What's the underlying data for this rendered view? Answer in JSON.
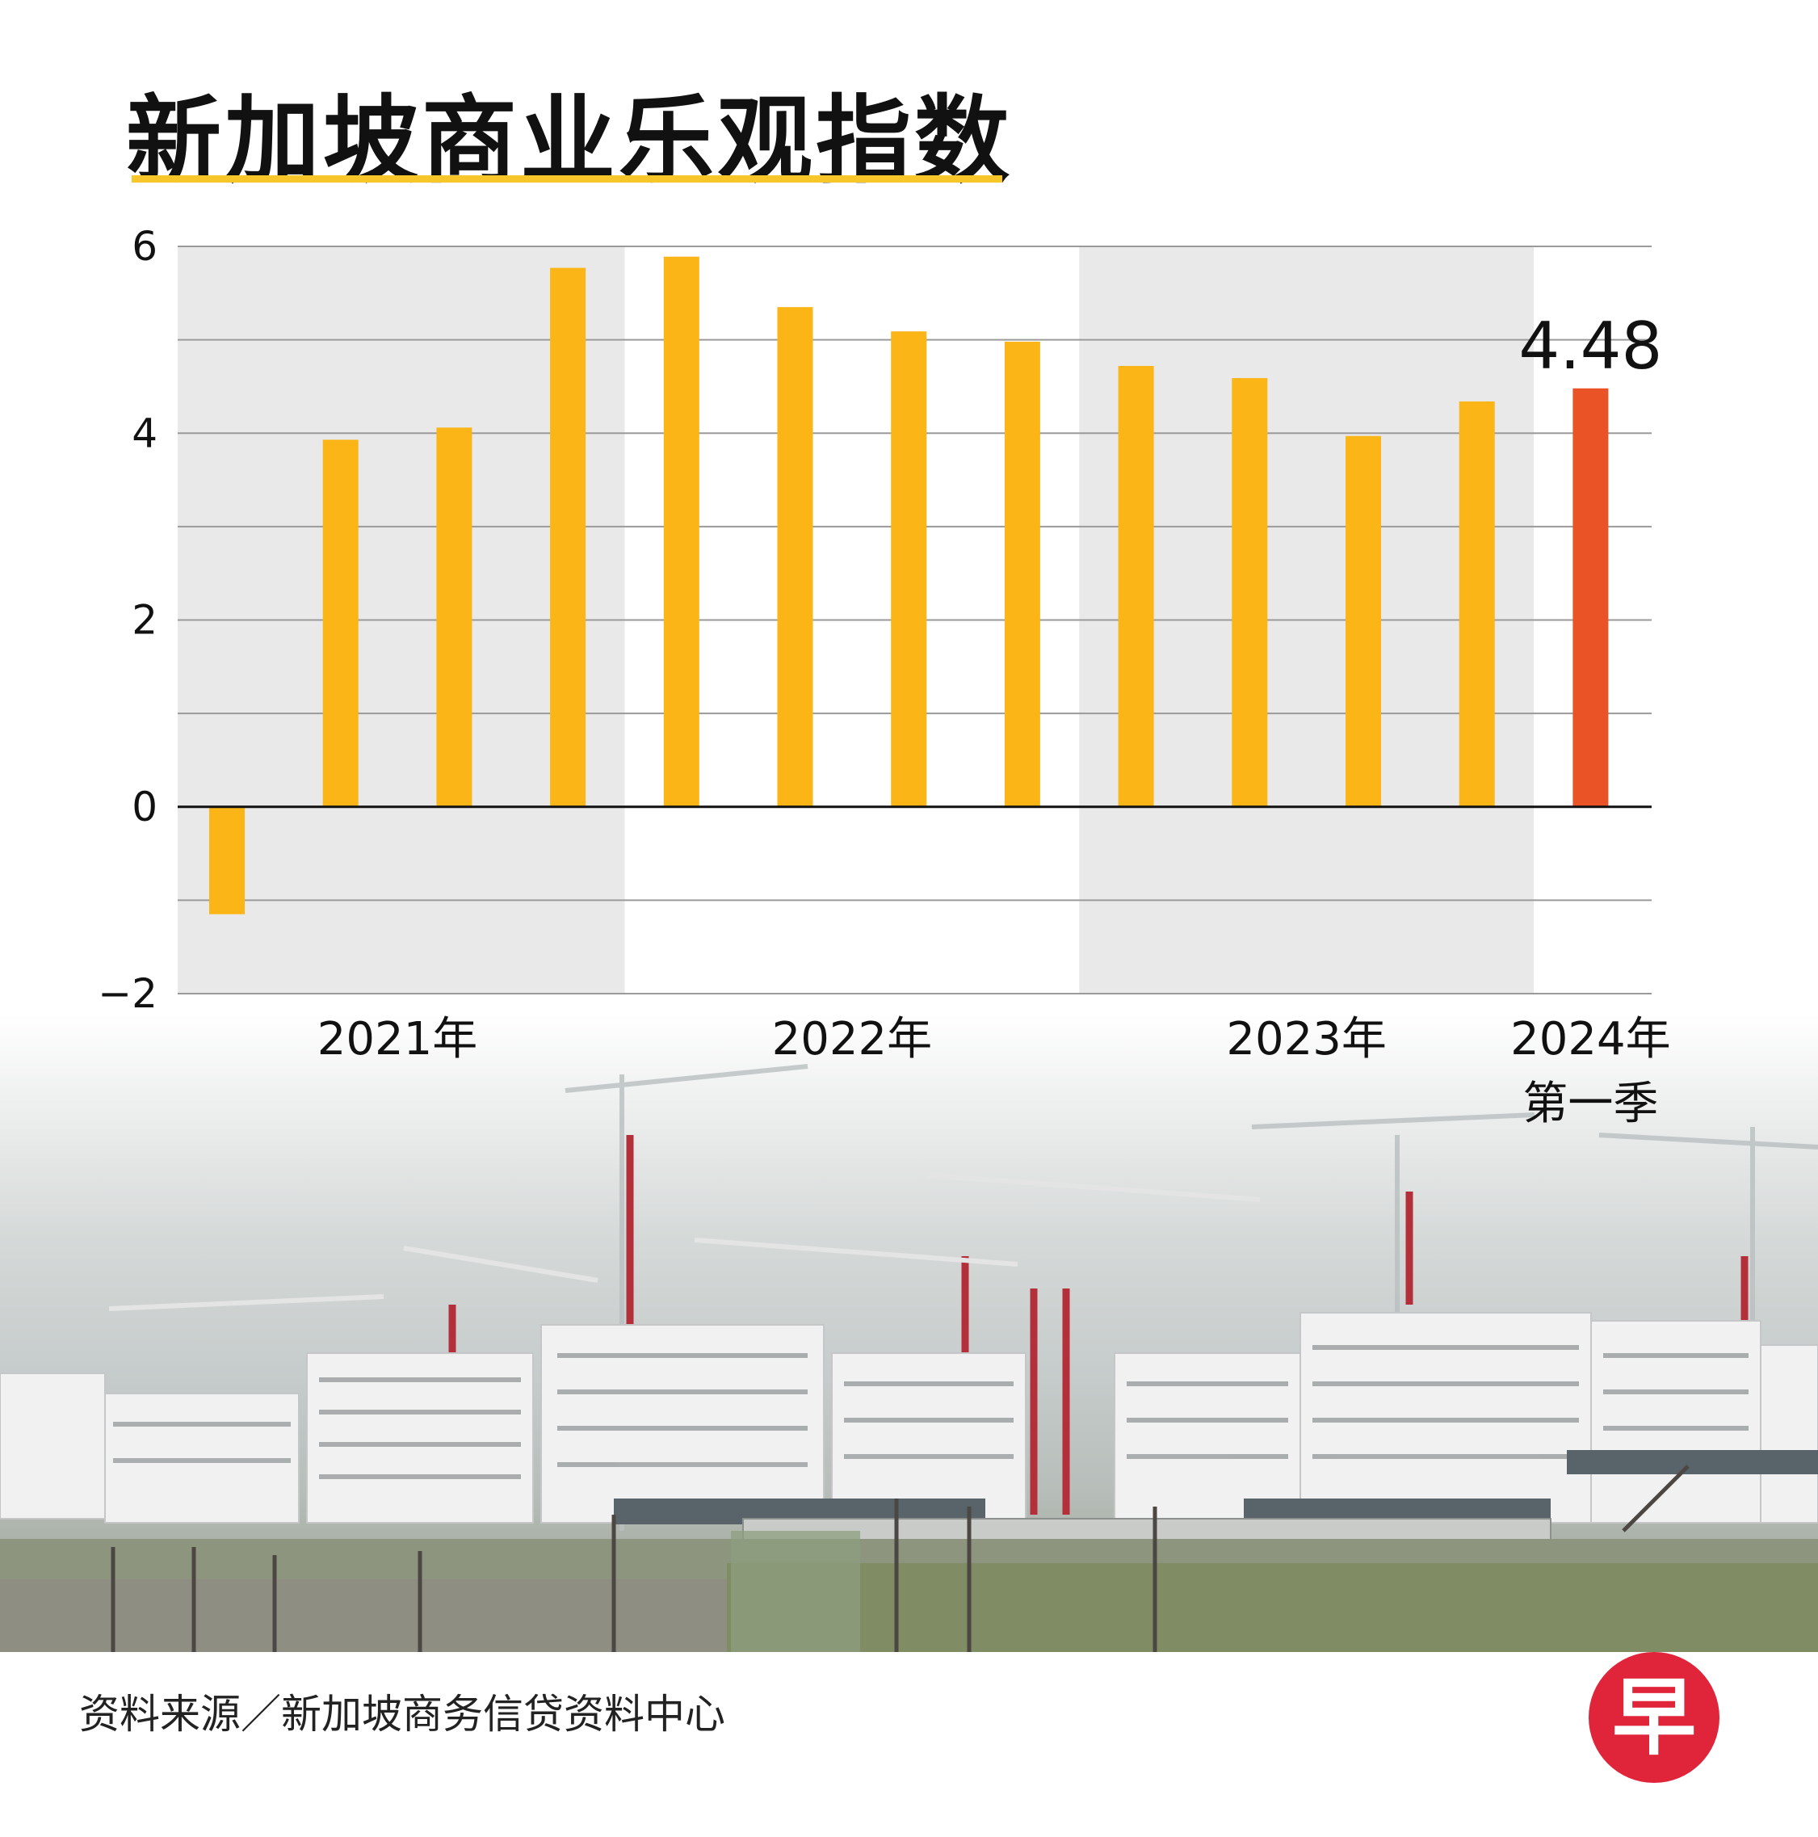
{
  "title": "新加坡商业乐观指数",
  "source": "资料来源／新加坡商务信贷资料中心",
  "logo_text": "早",
  "colors": {
    "bar": "#fbb517",
    "highlight_bar": "#ea5326",
    "band": "#e9e9e9",
    "grid": "#9a9a9a",
    "title_underline": "#f6c62b",
    "logo": "#e0243a"
  },
  "chart_data": {
    "type": "bar",
    "title": "新加坡商业乐观指数",
    "xlabel": "",
    "ylabel": "",
    "ylim": [
      -2,
      6
    ],
    "yticks": [
      6,
      4,
      2,
      0,
      -2
    ],
    "ytick_labels": [
      "6",
      "4",
      "2",
      "0",
      "−2"
    ],
    "grid": true,
    "categories": [
      "2021 Q1",
      "2021 Q2",
      "2021 Q3",
      "2021 Q4",
      "2022 Q1",
      "2022 Q2",
      "2022 Q3",
      "2022 Q4",
      "2023 Q1",
      "2023 Q2",
      "2023 Q3",
      "2023 Q4",
      "2024 Q1"
    ],
    "values": [
      -1.15,
      3.93,
      4.06,
      5.77,
      5.89,
      5.35,
      5.09,
      4.98,
      4.72,
      4.59,
      3.97,
      4.34,
      4.48
    ],
    "highlight_index": 12,
    "value_label": "4.48",
    "year_labels": [
      {
        "text": "2021年",
        "center_index": 1.5
      },
      {
        "text": "2022年",
        "center_index": 5.5
      },
      {
        "text": "2023年",
        "center_index": 9.5
      },
      {
        "text": "2024年",
        "sub": "第一季",
        "center_index": 12
      }
    ],
    "shaded_groups": [
      [
        0,
        3
      ],
      [
        8,
        11
      ]
    ]
  }
}
